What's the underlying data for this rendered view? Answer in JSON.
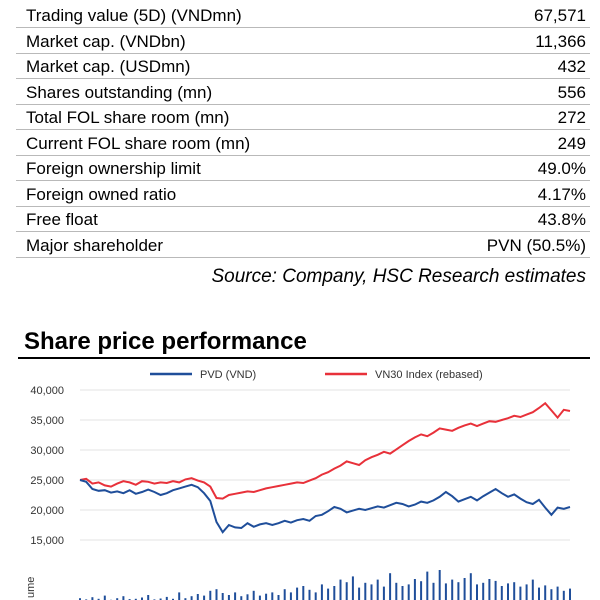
{
  "stats": {
    "rows": [
      {
        "label": "Trading value (5D) (VNDmn)",
        "value": "67,571"
      },
      {
        "label": "Market cap. (VNDbn)",
        "value": "11,366"
      },
      {
        "label": "Market cap. (USDmn)",
        "value": "432"
      },
      {
        "label": "Shares outstanding (mn)",
        "value": "556"
      },
      {
        "label": "Total FOL share room (mn)",
        "value": "272"
      },
      {
        "label": "Current FOL share room (mn)",
        "value": "249"
      },
      {
        "label": "Foreign ownership limit",
        "value": "49.0%"
      },
      {
        "label": "Foreign owned ratio",
        "value": "4.17%"
      },
      {
        "label": "Free float",
        "value": "43.8%"
      },
      {
        "label": "Major shareholder",
        "value": "PVN (50.5%)"
      }
    ],
    "source": "Source: Company, HSC Research estimates"
  },
  "section_title": "Share price performance",
  "chart_data": {
    "type": "line",
    "yticks": [
      "40,000",
      "35,000",
      "30,000",
      "25,000",
      "20,000",
      "15,000"
    ],
    "ylim": [
      15000,
      40000
    ],
    "volume_axis_label": "ume",
    "colors": {
      "pvd": "#1f4e9a",
      "vn30": "#e8313a",
      "volume": "#1f4e9a"
    },
    "series": [
      {
        "name": "PVD (VND)",
        "values": [
          25000,
          24700,
          23500,
          23200,
          23300,
          22900,
          23100,
          22800,
          23300,
          22700,
          23000,
          23400,
          23000,
          22500,
          22800,
          23300,
          23600,
          23900,
          24200,
          23800,
          22800,
          21500,
          18000,
          16300,
          17500,
          17100,
          17000,
          17800,
          17200,
          17600,
          17800,
          17500,
          17800,
          18200,
          17900,
          18300,
          18500,
          18200,
          19000,
          19200,
          19800,
          20500,
          20200,
          19600,
          19900,
          20200,
          20000,
          20300,
          20600,
          20400,
          20800,
          21200,
          21000,
          20600,
          20900,
          21400,
          21200,
          21600,
          22200,
          23000,
          22300,
          21400,
          21800,
          22200,
          21600,
          22300,
          22900,
          23500,
          22800,
          22200,
          22600,
          21900,
          21300,
          21000,
          21700,
          20400,
          19200,
          20400,
          20200,
          20500
        ]
      },
      {
        "name": "VN30 Index (rebased)",
        "values": [
          25000,
          25200,
          24400,
          24600,
          24100,
          23900,
          24400,
          24800,
          24600,
          24200,
          24800,
          24700,
          24400,
          24600,
          24500,
          24800,
          24600,
          25100,
          25300,
          24900,
          24600,
          23900,
          22000,
          21900,
          22500,
          22700,
          22900,
          23100,
          23000,
          23300,
          23600,
          23800,
          24000,
          24200,
          24400,
          24600,
          24500,
          24900,
          25300,
          25900,
          26300,
          26900,
          27400,
          28100,
          27800,
          27500,
          28300,
          28800,
          29200,
          29700,
          29400,
          30100,
          30800,
          31500,
          32100,
          32600,
          32300,
          32900,
          33600,
          33400,
          33200,
          33700,
          34100,
          34400,
          34000,
          34400,
          34800,
          34700,
          35000,
          35300,
          35700,
          35500,
          35900,
          36300,
          37000,
          37800,
          36600,
          35400,
          36700,
          36500
        ]
      }
    ],
    "volume": [
      0.12,
      0.08,
      0.15,
      0.1,
      0.2,
      0.07,
      0.12,
      0.18,
      0.09,
      0.1,
      0.14,
      0.22,
      0.08,
      0.11,
      0.16,
      0.1,
      0.3,
      0.12,
      0.18,
      0.25,
      0.2,
      0.35,
      0.4,
      0.28,
      0.22,
      0.3,
      0.18,
      0.24,
      0.35,
      0.2,
      0.26,
      0.3,
      0.22,
      0.4,
      0.3,
      0.45,
      0.5,
      0.38,
      0.3,
      0.55,
      0.42,
      0.5,
      0.7,
      0.62,
      0.8,
      0.45,
      0.6,
      0.55,
      0.7,
      0.48,
      0.9,
      0.6,
      0.5,
      0.55,
      0.72,
      0.65,
      0.95,
      0.6,
      1.0,
      0.58,
      0.7,
      0.62,
      0.75,
      0.9,
      0.55,
      0.6,
      0.72,
      0.66,
      0.5,
      0.58,
      0.62,
      0.48,
      0.55,
      0.7,
      0.45,
      0.52,
      0.4,
      0.48,
      0.35,
      0.42
    ]
  }
}
